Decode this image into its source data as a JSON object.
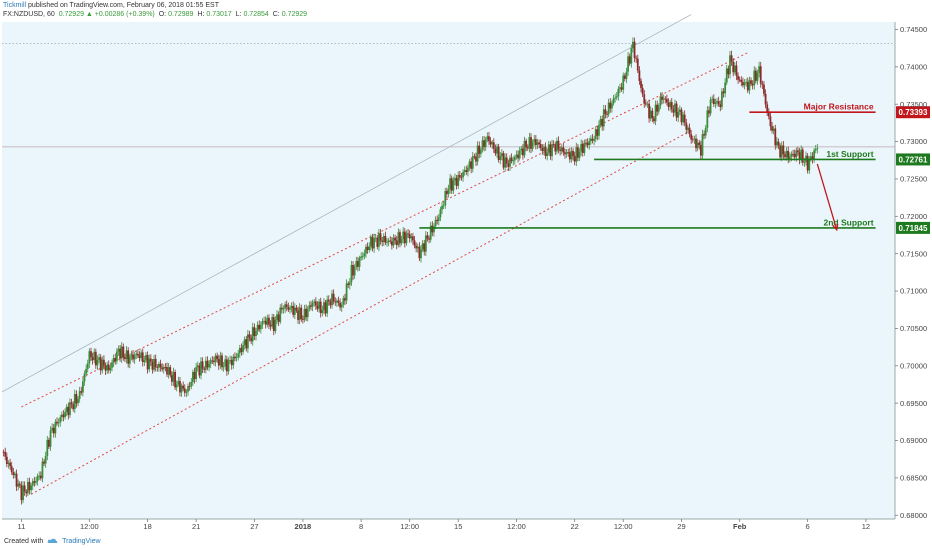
{
  "header": {
    "user": "Tickmill",
    "published": "published on TradingView.com, February 06, 2018 01:55 EST",
    "symbol": "FX:NZDUSD, 60",
    "change": "0.72929 ▲ +0.00286 (+0.39%)",
    "o_label": "O:",
    "o": "0.72989",
    "h_label": "H:",
    "h": "0.73017",
    "l_label": "L:",
    "l": "0.72854",
    "c_label": "C:",
    "c": "0.72929"
  },
  "footer": {
    "created": "Created with",
    "brand": "TradingView"
  },
  "colors": {
    "background": "#eaf6fb",
    "up": "#3b8c3b",
    "down": "#8b2a2a",
    "resistance": "#c0161c",
    "support": "#1e7a1e",
    "channel": "#e04848",
    "price_line": "#b8a8a8"
  },
  "chart_data": {
    "type": "line",
    "title": "",
    "xlabel": "",
    "ylabel": "",
    "ylim": [
      0.6795,
      0.746
    ],
    "grid": false,
    "y_ticks": [
      "0.74500",
      "0.74000",
      "0.73500",
      "0.73000",
      "0.72500",
      "0.72000",
      "0.71500",
      "0.71000",
      "0.70500",
      "0.70000",
      "0.69500",
      "0.69000",
      "0.68500",
      "0.68000"
    ],
    "x_ticks": [
      "11",
      "12:00",
      "18",
      "21",
      "27",
      "2018",
      "8",
      "12:00",
      "15",
      "12:00",
      "22",
      "12:00",
      "29",
      "Feb",
      "6",
      "12"
    ],
    "x_tick_positions": [
      2,
      9,
      15,
      20,
      26,
      31,
      37,
      42,
      47,
      53,
      59,
      64,
      70,
      76,
      83,
      89
    ],
    "x_max": 92,
    "price": {
      "x": [
        0,
        1,
        2,
        3,
        4,
        5,
        6,
        7,
        8,
        9,
        10,
        11,
        12,
        13,
        14,
        15,
        16,
        17,
        18,
        19,
        20,
        21,
        22,
        23,
        24,
        25,
        26,
        27,
        28,
        29,
        30,
        31,
        32,
        33,
        34,
        35,
        36,
        37,
        38,
        39,
        40,
        41,
        42,
        43,
        44,
        45,
        46,
        47,
        48,
        49,
        50,
        51,
        52,
        53,
        54,
        55,
        56,
        57,
        58,
        59,
        60,
        61,
        62,
        63,
        64,
        65,
        66,
        67,
        68,
        69,
        70,
        71,
        72,
        73,
        74,
        75,
        76,
        77,
        78,
        79,
        80,
        81,
        82,
        83,
        84
      ],
      "y": [
        0.6885,
        0.686,
        0.683,
        0.684,
        0.6855,
        0.691,
        0.693,
        0.6945,
        0.696,
        0.7015,
        0.7005,
        0.6995,
        0.702,
        0.701,
        0.7015,
        0.7005,
        0.7,
        0.6995,
        0.6975,
        0.6965,
        0.6995,
        0.7,
        0.701,
        0.7,
        0.701,
        0.703,
        0.7045,
        0.706,
        0.7055,
        0.708,
        0.7075,
        0.7065,
        0.7085,
        0.7075,
        0.709,
        0.708,
        0.7125,
        0.7145,
        0.7165,
        0.717,
        0.7165,
        0.717,
        0.7175,
        0.715,
        0.7175,
        0.72,
        0.724,
        0.725,
        0.7265,
        0.7285,
        0.7305,
        0.7285,
        0.727,
        0.728,
        0.7295,
        0.73,
        0.7285,
        0.7295,
        0.7285,
        0.728,
        0.7295,
        0.7305,
        0.7335,
        0.7355,
        0.738,
        0.743,
        0.736,
        0.733,
        0.736,
        0.7345,
        0.7335,
        0.7305,
        0.729,
        0.7355,
        0.735,
        0.741,
        0.738,
        0.7375,
        0.7395,
        0.733,
        0.729,
        0.728,
        0.7285,
        0.727,
        0.7293
      ]
    },
    "channel": {
      "upper": {
        "x": [
          2,
          77
        ],
        "y": [
          0.6945,
          0.742
        ]
      },
      "lower": {
        "x": [
          3,
          71
        ],
        "y": [
          0.6828,
          0.7315
        ]
      },
      "line_style": "dotted"
    },
    "thin_trendline": {
      "x": [
        0,
        71
      ],
      "y": [
        0.6965,
        0.747
      ]
    },
    "levels": [
      {
        "label": "Major Resistance",
        "value": 0.73393,
        "value_text": "0.73393",
        "x_start": 77,
        "x_end": 90,
        "color": "#c0161c"
      },
      {
        "label": "1st Support",
        "value": 0.72761,
        "value_text": "0.72761",
        "x_start": 61,
        "x_end": 90,
        "color": "#1e7a1e"
      },
      {
        "label": "2nd Support",
        "value": 0.71845,
        "value_text": "0.71845",
        "x_start": 43,
        "x_end": 90,
        "color": "#1e7a1e"
      }
    ],
    "projection_arrow": {
      "x": [
        84,
        86
      ],
      "y": [
        0.727,
        0.7182
      ],
      "color": "#c0161c"
    },
    "high_marker": 0.74315,
    "last_price": 0.72929
  }
}
